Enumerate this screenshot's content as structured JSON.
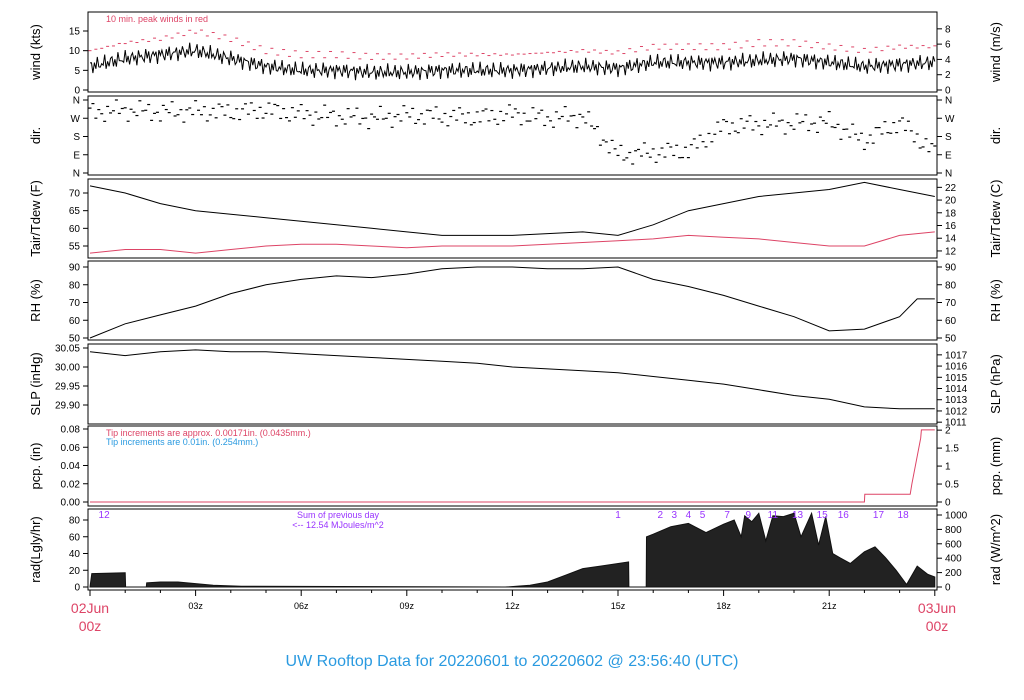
{
  "title": "UW Rooftop Data for 20220601  to  20220602 @ 23:56:40  (UTC)",
  "colors": {
    "red": "#dd4466",
    "blue": "#2a9ae0",
    "purple": "#9933ff",
    "line": "#000000"
  },
  "start_label": {
    "date": "02Jun",
    "time": "00z"
  },
  "end_label": {
    "date": "03Jun",
    "time": "00z"
  },
  "time_ticks": [
    "03z",
    "06z",
    "09z",
    "12z",
    "15z",
    "18z",
    "21z"
  ],
  "chart_data": [
    {
      "type": "line",
      "id": "wind",
      "ylabel": "wind (kts)",
      "ylabel_right": "wind (m/s)",
      "annotation": "10 min. peak winds in red",
      "yticks": [
        0,
        5,
        10,
        15
      ],
      "yticks_right": [
        0,
        2,
        4,
        6,
        8
      ],
      "x_hours": [
        0,
        1,
        2,
        3,
        4,
        5,
        6,
        7,
        8,
        9,
        10,
        11,
        12,
        13,
        14,
        15,
        16,
        17,
        18,
        19,
        20,
        21,
        22,
        23,
        24
      ],
      "series": [
        {
          "name": "wind",
          "values": [
            6,
            8,
            9,
            10,
            8,
            6,
            5,
            5,
            4.5,
            4.5,
            5,
            5,
            5,
            5.5,
            6,
            5.5,
            7,
            7,
            7,
            7.5,
            8,
            7,
            6,
            6.5,
            7
          ]
        },
        {
          "name": "peak",
          "values": [
            10,
            12,
            13,
            15,
            13,
            10,
            9,
            9,
            8.5,
            8.5,
            9,
            9,
            9,
            9.5,
            10,
            9.5,
            11,
            11,
            11,
            12,
            12,
            11,
            10,
            11,
            11
          ]
        }
      ]
    },
    {
      "type": "scatter",
      "id": "dir",
      "ylabel": "dir.",
      "ylabel_right": "dir.",
      "yticks_labels": [
        "N",
        "E",
        "S",
        "W",
        "N"
      ],
      "x_hours": [
        0,
        1,
        2,
        3,
        4,
        5,
        6,
        7,
        8,
        9,
        10,
        11,
        12,
        13,
        14,
        15,
        16,
        17,
        18,
        19,
        20,
        21,
        22,
        23,
        24
      ],
      "values": [
        300,
        310,
        300,
        305,
        300,
        310,
        290,
        280,
        270,
        285,
        280,
        275,
        290,
        270,
        280,
        90,
        100,
        110,
        230,
        240,
        245,
        250,
        160,
        250,
        100
      ]
    },
    {
      "type": "line",
      "id": "temp",
      "ylabel": "Tair/Tdew (F)",
      "ylabel_right": "Tair/Tdew (C)",
      "yticks": [
        55,
        60,
        65,
        70
      ],
      "yticks_right": [
        12,
        14,
        16,
        18,
        20,
        22
      ],
      "x_hours": [
        0,
        1,
        2,
        3,
        4,
        5,
        6,
        7,
        8,
        9,
        10,
        11,
        12,
        13,
        14,
        15,
        16,
        17,
        18,
        19,
        20,
        21,
        22,
        23,
        24
      ],
      "series": [
        {
          "name": "Tair",
          "values": [
            72,
            70,
            67,
            65,
            64,
            63,
            62,
            61,
            60,
            59,
            58,
            58,
            58,
            58.5,
            59,
            58,
            61,
            65,
            67,
            69,
            70,
            71,
            73,
            71,
            69
          ]
        },
        {
          "name": "Tdew",
          "values": [
            53,
            54,
            54,
            53,
            54,
            55,
            55.5,
            55.5,
            55,
            54.5,
            55,
            55,
            55,
            55.5,
            56,
            56.5,
            57,
            58,
            57.5,
            57,
            56,
            55,
            55,
            58,
            59
          ]
        }
      ]
    },
    {
      "type": "line",
      "id": "rh",
      "ylabel": "RH (%)",
      "ylabel_right": "RH (%)",
      "yticks": [
        50,
        60,
        70,
        80,
        90
      ],
      "yticks_right": [
        50,
        60,
        70,
        80,
        90
      ],
      "x_hours": [
        0,
        1,
        2,
        3,
        4,
        5,
        6,
        7,
        8,
        9,
        10,
        11,
        12,
        13,
        14,
        15,
        16,
        17,
        18,
        19,
        20,
        21,
        22,
        23,
        23.5,
        24
      ],
      "values": [
        50,
        58,
        63,
        68,
        75,
        80,
        83,
        85,
        84,
        86,
        89,
        90,
        90,
        89,
        89,
        90,
        83,
        79,
        74,
        68,
        62,
        54,
        55,
        62,
        72,
        72
      ]
    },
    {
      "type": "line",
      "id": "slp",
      "ylabel": "SLP (inHg)",
      "ylabel_right": "SLP (hPa)",
      "yticks": [
        "29.90",
        "29.95",
        "30.00",
        "30.05"
      ],
      "yticks_right": [
        1011,
        1012,
        1013,
        1014,
        1015,
        1016,
        1017
      ],
      "x_hours": [
        0,
        1,
        2,
        3,
        4,
        5,
        6,
        7,
        8,
        9,
        10,
        11,
        12,
        13,
        14,
        15,
        16,
        17,
        18,
        19,
        20,
        21,
        22,
        23,
        24
      ],
      "values": [
        30.04,
        30.03,
        30.04,
        30.045,
        30.04,
        30.04,
        30.035,
        30.03,
        30.025,
        30.02,
        30.015,
        30.01,
        30.0,
        29.995,
        29.99,
        29.985,
        29.975,
        29.965,
        29.955,
        29.94,
        29.925,
        29.915,
        29.895,
        29.89,
        29.89
      ]
    },
    {
      "type": "line",
      "id": "pcp",
      "ylabel": "pcp. (in)",
      "ylabel_right": "pcp. (mm)",
      "yticks": [
        "0.00",
        "0.02",
        "0.04",
        "0.06",
        "0.08"
      ],
      "yticks_right": [
        "0",
        "0.5",
        "1",
        "1.5",
        "2"
      ],
      "note_red": "Tip increments are approx. 0.00171in. (0.0435mm.)",
      "note_blue": "Tip increments are 0.01in. (0.254mm.)",
      "x_hours": [
        0,
        22.0,
        22.01,
        23.3,
        23.35,
        23.6,
        23.62,
        24
      ],
      "values": [
        0,
        0,
        0.0085,
        0.0085,
        0.02,
        0.07,
        0.079,
        0.079
      ]
    },
    {
      "type": "area",
      "id": "rad",
      "ylabel": "rad(Lgly/hr)",
      "ylabel_right": "rad (W/m^2)",
      "yticks": [
        0,
        20,
        40,
        60,
        80
      ],
      "yticks_right": [
        0,
        200,
        400,
        600,
        800,
        1000
      ],
      "sum_label": "Sum of previous day",
      "sum_value": "<-- 12.54 MJoules/m^2",
      "hour_labels": [
        {
          "h": 0.4,
          "t": "12"
        },
        {
          "h": 15,
          "t": "1"
        },
        {
          "h": 16.2,
          "t": "2"
        },
        {
          "h": 16.6,
          "t": "3"
        },
        {
          "h": 17,
          "t": "4"
        },
        {
          "h": 17.4,
          "t": "5"
        },
        {
          "h": 18.1,
          "t": "7"
        },
        {
          "h": 18.7,
          "t": "9"
        },
        {
          "h": 19.4,
          "t": "11"
        },
        {
          "h": 20.1,
          "t": "13"
        },
        {
          "h": 20.8,
          "t": "15"
        },
        {
          "h": 21.4,
          "t": "16"
        },
        {
          "h": 22.4,
          "t": "17"
        },
        {
          "h": 23.1,
          "t": "18"
        }
      ],
      "x_hours": [
        0,
        0.05,
        1.0,
        1.01,
        1.6,
        1.61,
        2.0,
        2.5,
        3.0,
        3.5,
        4.3,
        11.8,
        12.5,
        13.0,
        13.5,
        14.0,
        14.5,
        15.3,
        15.31,
        15.8,
        15.81,
        16.0,
        16.5,
        17.0,
        17.5,
        18.0,
        18.3,
        18.5,
        18.6,
        18.8,
        19.0,
        19.2,
        19.4,
        19.7,
        20.0,
        20.2,
        20.5,
        20.7,
        20.9,
        21.1,
        21.3,
        21.6,
        22.0,
        22.3,
        22.6,
        22.9,
        23.2,
        23.5,
        23.8,
        24
      ],
      "values": [
        0,
        16,
        17,
        0,
        0,
        5,
        6,
        6,
        4,
        2,
        1,
        0,
        2,
        6,
        14,
        22,
        25,
        30,
        0,
        0,
        60,
        63,
        72,
        76,
        65,
        75,
        80,
        60,
        85,
        78,
        88,
        55,
        85,
        84,
        88,
        60,
        88,
        50,
        84,
        40,
        35,
        28,
        42,
        48,
        35,
        20,
        3,
        25,
        15,
        12
      ]
    }
  ]
}
